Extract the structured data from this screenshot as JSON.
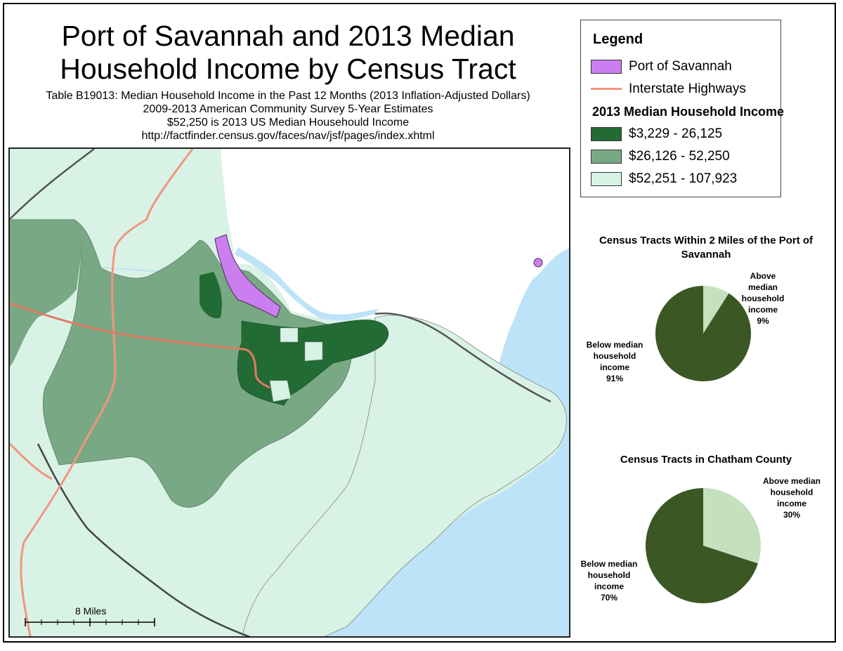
{
  "title_lines": [
    "Port of Savannah and 2013 Median",
    "Household Income by Census Tract"
  ],
  "subtitle_lines": [
    "Table B19013: Median Household Income in the Past 12 Months (2013 Inflation-Adjusted Dollars)",
    "2009-2013 American Community Survey 5-Year Estimates",
    "$52,250 is 2013 US Median Househould Income",
    "http://factfinder.census.gov/faces/nav/jsf/pages/index.xhtml"
  ],
  "legend": {
    "title": "Legend",
    "port_label": "Port of Savannah",
    "highway_label": "Interstate Highways",
    "income_title": "2013 Median Household Income",
    "classes": [
      {
        "label": "$3,229 - 26,125",
        "color": "#236b34"
      },
      {
        "label": "$26,126 - 52,250",
        "color": "#79a984"
      },
      {
        "label": "$52,251 - 107,923",
        "color": "#d9f2e6"
      }
    ],
    "port_color": "#cc7ef0",
    "highway_color": "#f2957e",
    "water_color": "#bde3f8"
  },
  "scale_bar": {
    "label": "8 Miles"
  },
  "chart_data": [
    {
      "type": "pie",
      "title": "Census Tracts Within 2 Miles of the Port of Savannah",
      "slices": [
        {
          "label": "Above median household income",
          "value": 9,
          "value_label": "9%",
          "color": "#c5e0bd"
        },
        {
          "label": "Below median household income",
          "value": 91,
          "value_label": "91%",
          "color": "#3a5724"
        }
      ]
    },
    {
      "type": "pie",
      "title": "Census Tracts in Chatham County",
      "slices": [
        {
          "label": "Above median household income",
          "value": 30,
          "value_label": "30%",
          "color": "#c5e0bd"
        },
        {
          "label": "Below median household income",
          "value": 70,
          "value_label": "70%",
          "color": "#3a5724"
        }
      ]
    }
  ]
}
